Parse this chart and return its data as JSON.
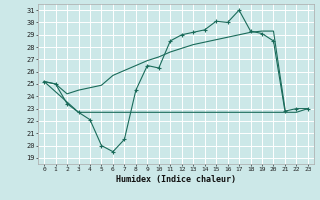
{
  "xlabel": "Humidex (Indice chaleur)",
  "bg_color": "#cce8e8",
  "grid_color": "#ffffff",
  "line_color": "#1a6b5a",
  "xlim": [
    -0.5,
    23.5
  ],
  "ylim": [
    18.5,
    31.5
  ],
  "xticks": [
    0,
    1,
    2,
    3,
    4,
    5,
    6,
    7,
    8,
    9,
    10,
    11,
    12,
    13,
    14,
    15,
    16,
    17,
    18,
    19,
    20,
    21,
    22,
    23
  ],
  "yticks": [
    19,
    20,
    21,
    22,
    23,
    24,
    25,
    26,
    27,
    28,
    29,
    30,
    31
  ],
  "curve1_x": [
    0,
    1,
    2,
    3,
    4,
    5,
    6,
    7,
    8,
    9,
    10,
    11,
    12,
    13,
    14,
    15,
    16,
    17,
    18,
    19,
    20,
    21,
    22,
    23
  ],
  "curve1_y": [
    25.2,
    25.0,
    23.4,
    22.7,
    22.1,
    20.0,
    19.5,
    20.5,
    24.5,
    26.5,
    26.3,
    28.5,
    29.0,
    29.2,
    29.4,
    30.1,
    30.0,
    31.0,
    29.3,
    29.1,
    28.5,
    22.8,
    23.0,
    23.0
  ],
  "curve2_x": [
    0,
    1,
    2,
    3,
    4,
    5,
    6,
    7,
    8,
    9,
    10,
    11,
    12,
    13,
    14,
    15,
    16,
    17,
    18,
    19,
    20,
    21
  ],
  "curve2_y": [
    25.2,
    25.0,
    24.2,
    24.5,
    24.7,
    24.9,
    25.7,
    26.1,
    26.5,
    26.9,
    27.2,
    27.6,
    27.9,
    28.2,
    28.4,
    28.6,
    28.8,
    29.0,
    29.2,
    29.3,
    29.3,
    23.0
  ],
  "curve3_x": [
    0,
    3,
    4,
    5,
    6,
    7,
    8,
    9,
    10,
    11,
    12,
    13,
    14,
    15,
    16,
    17,
    18,
    19,
    20,
    21,
    22,
    23
  ],
  "curve3_y": [
    25.2,
    22.7,
    22.7,
    22.7,
    22.7,
    22.7,
    22.7,
    22.7,
    22.7,
    22.7,
    22.7,
    22.7,
    22.7,
    22.7,
    22.7,
    22.7,
    22.7,
    22.7,
    22.7,
    22.7,
    22.7,
    23.0
  ]
}
